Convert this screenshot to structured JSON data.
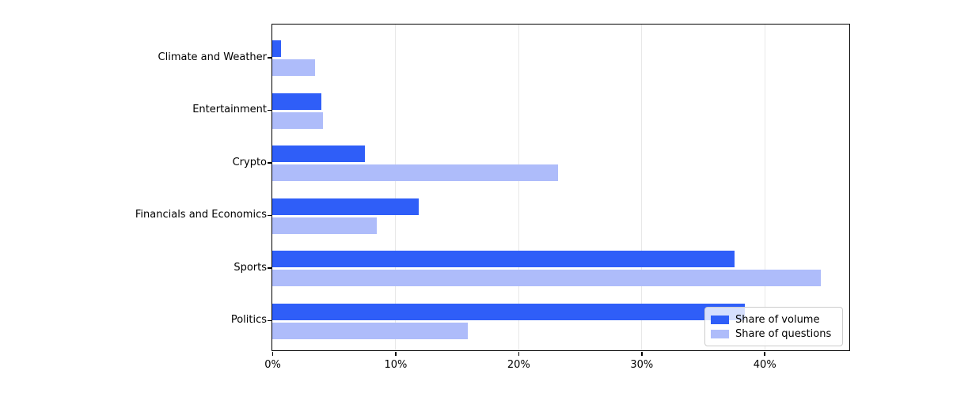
{
  "chart_data": {
    "type": "bar",
    "orientation": "horizontal",
    "title": "",
    "xlabel": "",
    "ylabel": "",
    "categories": [
      "Climate and Weather",
      "Entertainment",
      "Crypto",
      "Financials and Economics",
      "Sports",
      "Politics"
    ],
    "series": [
      {
        "name": "Share of volume",
        "color": "#2f5ef8",
        "values": [
          0.7,
          4.0,
          7.5,
          11.9,
          37.6,
          38.4
        ]
      },
      {
        "name": "Share of questions",
        "color": "#aebcfa",
        "values": [
          3.5,
          4.1,
          23.2,
          8.5,
          44.6,
          15.9
        ]
      }
    ],
    "value_unit": "%",
    "xlim": [
      0,
      46.9
    ],
    "x_ticks": [
      0,
      10,
      20,
      30,
      40
    ],
    "x_tick_labels": [
      "0%",
      "10%",
      "20%",
      "30%",
      "40%"
    ],
    "grid": "vertical",
    "grid_ticks": [
      10,
      20,
      30,
      40
    ],
    "legend_position": "lower right"
  },
  "colors": {
    "volume_bar": "#2f5ef8",
    "questions_bar": "#aebcfa",
    "gridline": "#e8e8e8",
    "spine": "#000000",
    "legend_border": "#cccccc",
    "background": "#ffffff"
  }
}
